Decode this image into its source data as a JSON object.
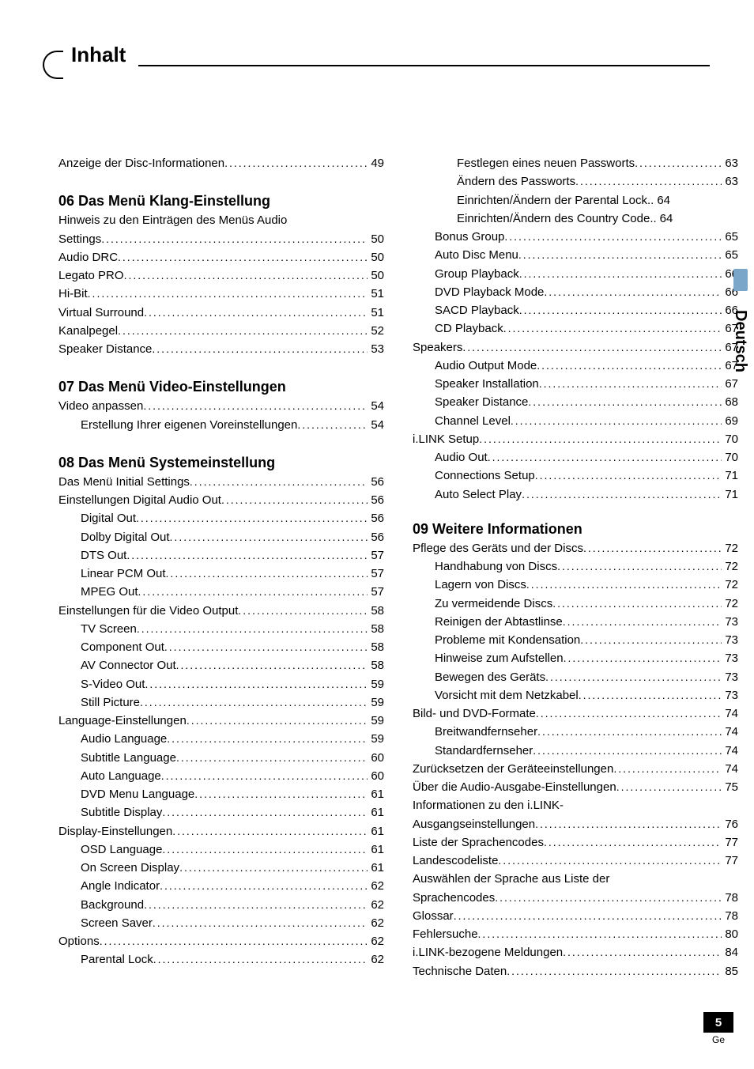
{
  "page_title": "Inhalt",
  "side_tab": "Deutsch",
  "page_number": "5",
  "lang_code": "Ge",
  "left_column": [
    {
      "type": "item",
      "indent": 0,
      "label": "Anzeige der Disc-Informationen",
      "page": "49",
      "pre_gap": 0
    },
    {
      "type": "section",
      "label": "06  Das Menü Klang-Einstellung",
      "pre_gap": 26
    },
    {
      "type": "cont",
      "text": "Hinweis zu den Einträgen des Menüs Audio"
    },
    {
      "type": "item",
      "indent": 0,
      "label": "Settings",
      "page": "50"
    },
    {
      "type": "item",
      "indent": 0,
      "label": "Audio DRC",
      "page": "50"
    },
    {
      "type": "item",
      "indent": 0,
      "label": "Legato PRO",
      "page": "50"
    },
    {
      "type": "item",
      "indent": 0,
      "label": "Hi-Bit",
      "page": "51"
    },
    {
      "type": "item",
      "indent": 0,
      "label": "Virtual Surround",
      "page": "51"
    },
    {
      "type": "item",
      "indent": 0,
      "label": "Kanalpegel",
      "page": "52"
    },
    {
      "type": "item",
      "indent": 0,
      "label": "Speaker Distance",
      "page": "53"
    },
    {
      "type": "section",
      "label": "07  Das Menü Video-Einstellungen",
      "pre_gap": 26
    },
    {
      "type": "item",
      "indent": 0,
      "label": "Video anpassen",
      "page": "54"
    },
    {
      "type": "item",
      "indent": 1,
      "label": "Erstellung Ihrer eigenen Voreinstellungen",
      "page": "54"
    },
    {
      "type": "section",
      "label": "08  Das Menü Systemeinstellung",
      "pre_gap": 26
    },
    {
      "type": "item",
      "indent": 0,
      "label": "Das Menü Initial Settings",
      "page": "56"
    },
    {
      "type": "item",
      "indent": 0,
      "label": "Einstellungen Digital Audio Out",
      "page": "56"
    },
    {
      "type": "item",
      "indent": 1,
      "label": "Digital Out",
      "page": "56"
    },
    {
      "type": "item",
      "indent": 1,
      "label": "Dolby Digital Out",
      "page": "56"
    },
    {
      "type": "item",
      "indent": 1,
      "label": "DTS Out",
      "page": "57"
    },
    {
      "type": "item",
      "indent": 1,
      "label": "Linear PCM Out",
      "page": "57"
    },
    {
      "type": "item",
      "indent": 1,
      "label": "MPEG Out",
      "page": "57"
    },
    {
      "type": "item",
      "indent": 0,
      "label": "Einstellungen für die Video Output",
      "page": "58"
    },
    {
      "type": "item",
      "indent": 1,
      "label": "TV Screen",
      "page": "58"
    },
    {
      "type": "item",
      "indent": 1,
      "label": "Component Out",
      "page": "58"
    },
    {
      "type": "item",
      "indent": 1,
      "label": "AV Connector Out",
      "page": "58"
    },
    {
      "type": "item",
      "indent": 1,
      "label": "S-Video Out",
      "page": "59"
    },
    {
      "type": "item",
      "indent": 1,
      "label": "Still Picture",
      "page": "59"
    },
    {
      "type": "item",
      "indent": 0,
      "label": "Language-Einstellungen",
      "page": "59"
    },
    {
      "type": "item",
      "indent": 1,
      "label": "Audio Language",
      "page": "59"
    },
    {
      "type": "item",
      "indent": 1,
      "label": "Subtitle Language",
      "page": "60"
    },
    {
      "type": "item",
      "indent": 1,
      "label": "Auto Language",
      "page": "60"
    },
    {
      "type": "item",
      "indent": 1,
      "label": "DVD Menu Language",
      "page": "61"
    },
    {
      "type": "item",
      "indent": 1,
      "label": "Subtitle Display",
      "page": "61"
    },
    {
      "type": "item",
      "indent": 0,
      "label": "Display-Einstellungen",
      "page": "61"
    },
    {
      "type": "item",
      "indent": 1,
      "label": "OSD Language",
      "page": "61"
    },
    {
      "type": "item",
      "indent": 1,
      "label": "On Screen Display",
      "page": "61"
    },
    {
      "type": "item",
      "indent": 1,
      "label": "Angle Indicator",
      "page": "62"
    },
    {
      "type": "item",
      "indent": 1,
      "label": "Background",
      "page": "62"
    },
    {
      "type": "item",
      "indent": 1,
      "label": "Screen Saver",
      "page": "62"
    },
    {
      "type": "item",
      "indent": 0,
      "label": "Options",
      "page": "62"
    },
    {
      "type": "item",
      "indent": 1,
      "label": "Parental Lock",
      "page": "62"
    }
  ],
  "right_column": [
    {
      "type": "item",
      "indent": 2,
      "label": "Festlegen eines neuen Passworts",
      "page": "63"
    },
    {
      "type": "item",
      "indent": 2,
      "label": "Ändern des Passworts",
      "page": "63"
    },
    {
      "type": "item",
      "indent": 2,
      "label": "Einrichten/Ändern der Parental Lock",
      "page": "64",
      "dots": ".."
    },
    {
      "type": "item",
      "indent": 2,
      "label": "Einrichten/Ändern des Country Code",
      "page": "64",
      "dots": ".."
    },
    {
      "type": "item",
      "indent": 1,
      "label": "Bonus Group",
      "page": "65"
    },
    {
      "type": "item",
      "indent": 1,
      "label": "Auto Disc Menu",
      "page": "65"
    },
    {
      "type": "item",
      "indent": 1,
      "label": "Group Playback",
      "page": "66"
    },
    {
      "type": "item",
      "indent": 1,
      "label": "DVD Playback Mode",
      "page": "66"
    },
    {
      "type": "item",
      "indent": 1,
      "label": "SACD Playback",
      "page": "66"
    },
    {
      "type": "item",
      "indent": 1,
      "label": "CD Playback",
      "page": "67"
    },
    {
      "type": "item",
      "indent": 0,
      "label": "Speakers",
      "page": "67"
    },
    {
      "type": "item",
      "indent": 1,
      "label": "Audio Output Mode",
      "page": "67"
    },
    {
      "type": "item",
      "indent": 1,
      "label": "Speaker Installation",
      "page": "67"
    },
    {
      "type": "item",
      "indent": 1,
      "label": "Speaker Distance",
      "page": "68"
    },
    {
      "type": "item",
      "indent": 1,
      "label": "Channel Level",
      "page": "69"
    },
    {
      "type": "item",
      "indent": 0,
      "label": "i.LINK Setup",
      "page": "70"
    },
    {
      "type": "item",
      "indent": 1,
      "label": "Audio Out",
      "page": "70"
    },
    {
      "type": "item",
      "indent": 1,
      "label": "Connections Setup",
      "page": "71"
    },
    {
      "type": "item",
      "indent": 1,
      "label": "Auto Select Play",
      "page": "71"
    },
    {
      "type": "section",
      "label": "09  Weitere Informationen",
      "pre_gap": 22
    },
    {
      "type": "item",
      "indent": 0,
      "label": "Pflege des Geräts und der Discs",
      "page": "72"
    },
    {
      "type": "item",
      "indent": 1,
      "label": "Handhabung von Discs",
      "page": "72"
    },
    {
      "type": "item",
      "indent": 1,
      "label": "Lagern von Discs",
      "page": "72"
    },
    {
      "type": "item",
      "indent": 1,
      "label": "Zu vermeidende Discs",
      "page": "72"
    },
    {
      "type": "item",
      "indent": 1,
      "label": "Reinigen der Abtastlinse",
      "page": "73"
    },
    {
      "type": "item",
      "indent": 1,
      "label": "Probleme mit Kondensation",
      "page": "73"
    },
    {
      "type": "item",
      "indent": 1,
      "label": "Hinweise zum Aufstellen",
      "page": "73"
    },
    {
      "type": "item",
      "indent": 1,
      "label": "Bewegen des Geräts",
      "page": "73"
    },
    {
      "type": "item",
      "indent": 1,
      "label": "Vorsicht mit dem Netzkabel",
      "page": "73"
    },
    {
      "type": "item",
      "indent": 0,
      "label": "Bild- und DVD-Formate",
      "page": "74"
    },
    {
      "type": "item",
      "indent": 1,
      "label": "Breitwandfernseher",
      "page": "74"
    },
    {
      "type": "item",
      "indent": 1,
      "label": "Standardfernseher",
      "page": "74"
    },
    {
      "type": "item",
      "indent": 0,
      "label": "Zurücksetzen der Geräteeinstellungen",
      "page": "74"
    },
    {
      "type": "item",
      "indent": 0,
      "label": "Über die Audio-Ausgabe-Einstellungen",
      "page": "75"
    },
    {
      "type": "cont",
      "text": "Informationen zu den i.LINK-"
    },
    {
      "type": "item",
      "indent": 0,
      "label": "Ausgangseinstellungen",
      "page": "76"
    },
    {
      "type": "item",
      "indent": 0,
      "label": "Liste der Sprachencodes",
      "page": "77"
    },
    {
      "type": "item",
      "indent": 0,
      "label": "Landescodeliste",
      "page": "77"
    },
    {
      "type": "cont",
      "text": "Auswählen der Sprache aus Liste der"
    },
    {
      "type": "item",
      "indent": 0,
      "label": "Sprachencodes",
      "page": "78"
    },
    {
      "type": "item",
      "indent": 0,
      "label": "Glossar",
      "page": "78"
    },
    {
      "type": "item",
      "indent": 0,
      "label": "Fehlersuche",
      "page": "80"
    },
    {
      "type": "item",
      "indent": 0,
      "label": "i.LINK-bezogene Meldungen",
      "page": "84"
    },
    {
      "type": "item",
      "indent": 0,
      "label": "Technische Daten",
      "page": "85"
    }
  ]
}
